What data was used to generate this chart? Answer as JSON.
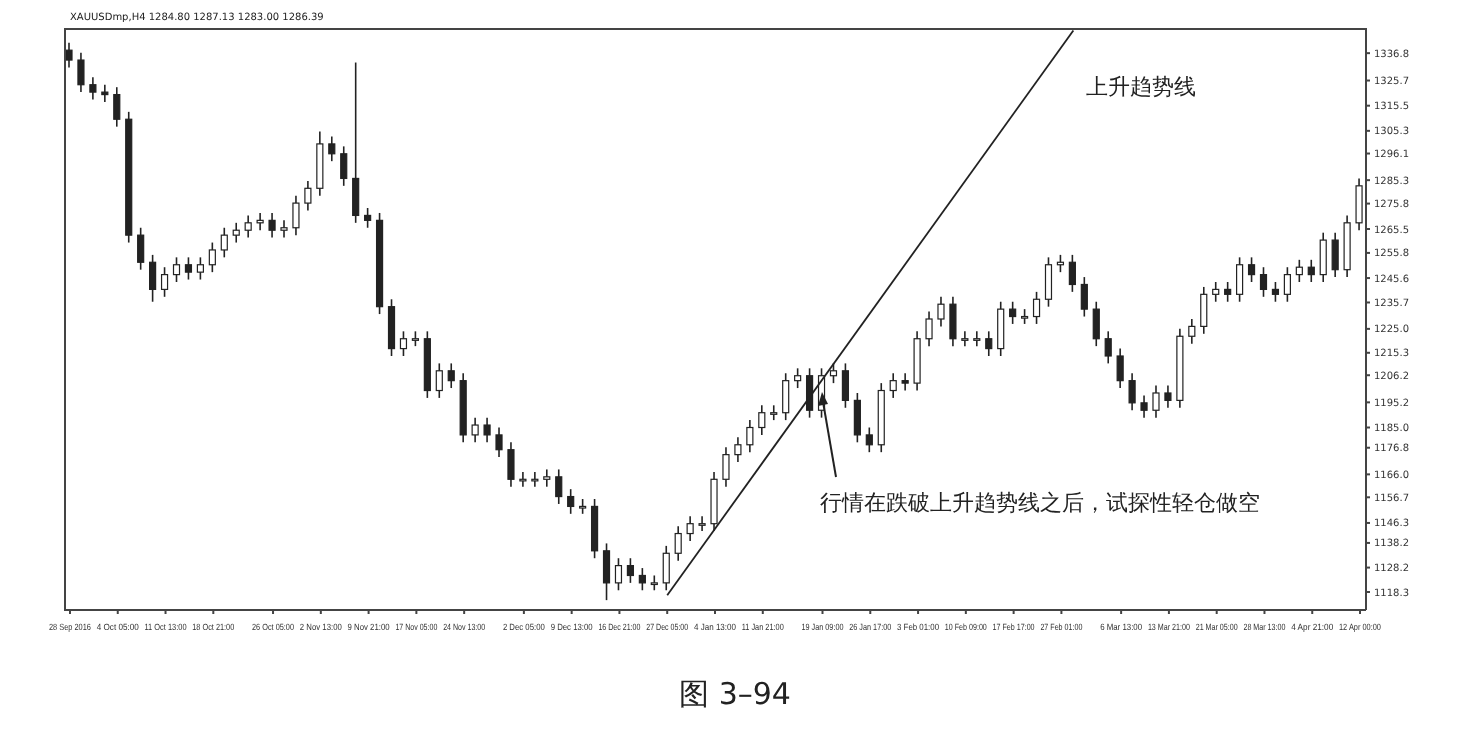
{
  "chart_data": {
    "type": "candlestick",
    "title": "XAUUSDmp,H4 1284.80 1287.13 1283.00 1286.39",
    "categories": [
      "28 Sep 2016",
      null,
      null,
      null,
      "4 Oct 05:00",
      null,
      null,
      null,
      "11 Oct 13:00",
      null,
      null,
      null,
      "18 Oct 21:00",
      null,
      null,
      null,
      null,
      "26 Oct 05:00",
      null,
      null,
      null,
      "2 Nov 13:00",
      null,
      null,
      null,
      "9 Nov 21:00",
      null,
      null,
      null,
      "17 Nov 05:00",
      null,
      null,
      null,
      "24 Nov 13:00",
      null,
      null,
      null,
      null,
      "2 Dec 05:00",
      null,
      null,
      null,
      "9 Dec 13:00",
      null,
      null,
      null,
      "16 Dec 21:00",
      null,
      null,
      null,
      "27 Dec 05:00",
      null,
      null,
      null,
      "4 Jan 13:00",
      null,
      null,
      null,
      "11 Jan 21:00",
      null,
      null,
      null,
      null,
      "19 Jan 09:00",
      null,
      null,
      null,
      "26 Jan 17:00",
      null,
      null,
      null,
      "3 Feb 01:00",
      null,
      null,
      null,
      "10 Feb 09:00",
      null,
      null,
      null,
      "17 Feb 17:00",
      null,
      null,
      null,
      "27 Feb 01:00",
      null,
      null,
      null,
      null,
      "6 Mar 13:00",
      null,
      null,
      null,
      "13 Mar 21:00",
      null,
      null,
      null,
      "21 Mar 05:00",
      null,
      null,
      null,
      "28 Mar 13:00",
      null,
      null,
      null,
      "4 Apr 21:00",
      null,
      null,
      null,
      "12 Apr 00:00"
    ],
    "ohlc": [
      [
        1338,
        1341,
        1331,
        1334
      ],
      [
        1334,
        1337,
        1321,
        1324
      ],
      [
        1324,
        1327,
        1318,
        1321
      ],
      [
        1321,
        1324,
        1317,
        1320
      ],
      [
        1320,
        1323,
        1307,
        1310
      ],
      [
        1310,
        1313,
        1260,
        1263
      ],
      [
        1263,
        1266,
        1249,
        1252
      ],
      [
        1252,
        1255,
        1236,
        1241
      ],
      [
        1241,
        1250,
        1238,
        1247
      ],
      [
        1247,
        1254,
        1244,
        1251
      ],
      [
        1251,
        1254,
        1245,
        1248
      ],
      [
        1248,
        1254,
        1245,
        1251
      ],
      [
        1251,
        1260,
        1248,
        1257
      ],
      [
        1257,
        1266,
        1254,
        1263
      ],
      [
        1263,
        1268,
        1260,
        1265
      ],
      [
        1265,
        1271,
        1262,
        1268
      ],
      [
        1268,
        1272,
        1265,
        1269
      ],
      [
        1269,
        1272,
        1262,
        1265
      ],
      [
        1265,
        1269,
        1262,
        1266
      ],
      [
        1266,
        1279,
        1263,
        1276
      ],
      [
        1276,
        1285,
        1273,
        1282
      ],
      [
        1282,
        1305,
        1279,
        1300
      ],
      [
        1300,
        1303,
        1293,
        1296
      ],
      [
        1296,
        1299,
        1283,
        1286
      ],
      [
        1286,
        1333,
        1268,
        1271
      ],
      [
        1271,
        1274,
        1266,
        1269
      ],
      [
        1269,
        1272,
        1231,
        1234
      ],
      [
        1234,
        1237,
        1214,
        1217
      ],
      [
        1217,
        1224,
        1214,
        1221
      ],
      [
        1221,
        1224,
        1218,
        1221
      ],
      [
        1221,
        1224,
        1197,
        1200
      ],
      [
        1200,
        1211,
        1197,
        1208
      ],
      [
        1208,
        1211,
        1201,
        1204
      ],
      [
        1204,
        1207,
        1179,
        1182
      ],
      [
        1182,
        1189,
        1179,
        1186
      ],
      [
        1186,
        1189,
        1179,
        1182
      ],
      [
        1182,
        1185,
        1173,
        1176
      ],
      [
        1176,
        1179,
        1161,
        1164
      ],
      [
        1164,
        1167,
        1161,
        1164
      ],
      [
        1164,
        1167,
        1161,
        1164
      ],
      [
        1164,
        1168,
        1161,
        1165
      ],
      [
        1165,
        1168,
        1154,
        1157
      ],
      [
        1157,
        1160,
        1150,
        1153
      ],
      [
        1153,
        1156,
        1150,
        1153
      ],
      [
        1153,
        1156,
        1132,
        1135
      ],
      [
        1135,
        1138,
        1115,
        1122
      ],
      [
        1122,
        1132,
        1119,
        1129
      ],
      [
        1129,
        1132,
        1122,
        1125
      ],
      [
        1125,
        1128,
        1119,
        1122
      ],
      [
        1122,
        1125,
        1119,
        1122
      ],
      [
        1122,
        1137,
        1119,
        1134
      ],
      [
        1134,
        1145,
        1131,
        1142
      ],
      [
        1142,
        1149,
        1139,
        1146
      ],
      [
        1146,
        1149,
        1143,
        1146
      ],
      [
        1146,
        1167,
        1143,
        1164
      ],
      [
        1164,
        1177,
        1161,
        1174
      ],
      [
        1174,
        1181,
        1171,
        1178
      ],
      [
        1178,
        1188,
        1175,
        1185
      ],
      [
        1185,
        1194,
        1182,
        1191
      ],
      [
        1191,
        1194,
        1188,
        1191
      ],
      [
        1191,
        1207,
        1188,
        1204
      ],
      [
        1204,
        1209,
        1201,
        1206
      ],
      [
        1206,
        1209,
        1189,
        1192
      ],
      [
        1192,
        1209,
        1189,
        1206
      ],
      [
        1206,
        1211,
        1203,
        1208
      ],
      [
        1208,
        1211,
        1193,
        1196
      ],
      [
        1196,
        1199,
        1179,
        1182
      ],
      [
        1182,
        1185,
        1175,
        1178
      ],
      [
        1178,
        1203,
        1175,
        1200
      ],
      [
        1200,
        1207,
        1197,
        1204
      ],
      [
        1204,
        1207,
        1200,
        1203
      ],
      [
        1203,
        1224,
        1200,
        1221
      ],
      [
        1221,
        1232,
        1218,
        1229
      ],
      [
        1229,
        1238,
        1226,
        1235
      ],
      [
        1235,
        1238,
        1218,
        1221
      ],
      [
        1221,
        1224,
        1218,
        1221
      ],
      [
        1221,
        1224,
        1218,
        1221
      ],
      [
        1221,
        1224,
        1214,
        1217
      ],
      [
        1217,
        1236,
        1214,
        1233
      ],
      [
        1233,
        1236,
        1227,
        1230
      ],
      [
        1230,
        1233,
        1227,
        1230
      ],
      [
        1230,
        1240,
        1227,
        1237
      ],
      [
        1237,
        1254,
        1234,
        1251
      ],
      [
        1251,
        1255,
        1248,
        1252
      ],
      [
        1252,
        1255,
        1240,
        1243
      ],
      [
        1243,
        1246,
        1230,
        1233
      ],
      [
        1233,
        1236,
        1218,
        1221
      ],
      [
        1221,
        1224,
        1211,
        1214
      ],
      [
        1214,
        1217,
        1201,
        1204
      ],
      [
        1204,
        1207,
        1192,
        1195
      ],
      [
        1195,
        1198,
        1189,
        1192
      ],
      [
        1192,
        1202,
        1189,
        1199
      ],
      [
        1199,
        1202,
        1193,
        1196
      ],
      [
        1196,
        1225,
        1193,
        1222
      ],
      [
        1222,
        1229,
        1219,
        1226
      ],
      [
        1226,
        1242,
        1223,
        1239
      ],
      [
        1239,
        1244,
        1236,
        1241
      ],
      [
        1241,
        1244,
        1236,
        1239
      ],
      [
        1239,
        1254,
        1236,
        1251
      ],
      [
        1251,
        1254,
        1244,
        1247
      ],
      [
        1247,
        1250,
        1238,
        1241
      ],
      [
        1241,
        1244,
        1236,
        1239
      ],
      [
        1239,
        1250,
        1236,
        1247
      ],
      [
        1247,
        1253,
        1244,
        1250
      ],
      [
        1250,
        1253,
        1244,
        1247
      ],
      [
        1247,
        1264,
        1244,
        1261
      ],
      [
        1261,
        1264,
        1246,
        1249
      ],
      [
        1249,
        1271,
        1246,
        1268
      ],
      [
        1268,
        1286,
        1265,
        1283
      ]
    ],
    "color": "#222222",
    "series": [
      {
        "type": "line",
        "color": "#222222",
        "values": [
          null,
          null,
          null,
          null,
          null,
          null,
          null,
          null,
          null,
          null,
          null,
          null,
          null,
          null,
          null,
          null,
          null,
          null,
          null,
          null,
          null,
          null,
          null,
          null,
          null,
          null,
          null,
          null,
          null,
          null,
          null,
          null,
          null,
          null,
          null,
          null,
          null,
          null,
          null,
          null,
          null,
          null,
          null,
          null,
          null,
          null,
          null,
          null,
          null,
          null,
          1117,
          null,
          null,
          null,
          null,
          null,
          null,
          null,
          null,
          null,
          null,
          null,
          null,
          null,
          null,
          null,
          null,
          null,
          null,
          null,
          null,
          null,
          null,
          null,
          null,
          null,
          null,
          null,
          null,
          null,
          null,
          null,
          null,
          null,
          1346,
          null,
          null,
          null,
          null,
          null,
          null,
          null,
          null,
          null,
          null,
          null,
          null,
          null,
          null,
          null,
          null,
          null,
          null,
          null,
          null,
          null,
          null,
          null,
          null
        ]
      }
    ],
    "ylim": [
      1111,
      1347
    ],
    "yticks": [
      1118.3,
      1128.2,
      1138.2,
      1146.3,
      1156.7,
      {
        "value": 1166,
        "label": "1166.0"
      },
      1176.8,
      {
        "value": 1185,
        "label": "1185.0"
      },
      1195.2,
      1206.2,
      1215.3,
      {
        "value": 1225,
        "label": "1225.0"
      },
      1235.7,
      1245.6,
      1255.8,
      1265.5,
      1275.8,
      1285.3,
      1296.1,
      1305.3,
      1315.5,
      1325.7,
      1336.8
    ],
    "annotations": [
      "上升趋势线",
      {
        "text": "行情在跌破上升趋势线之后，试探性轻仓做空",
        "x": "19 Jan 09:00",
        "y": 1199
      },
      "图 3–94"
    ]
  }
}
